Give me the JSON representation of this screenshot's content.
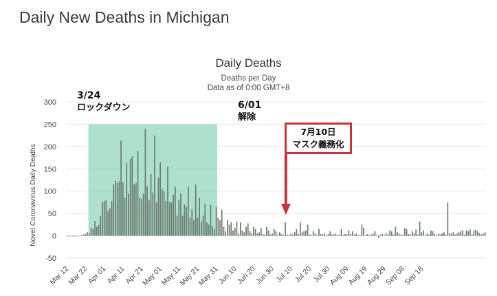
{
  "page": {
    "title": "Daily New Deaths in Michigan"
  },
  "annotations": {
    "lockdown_date": "3/24",
    "lockdown_label": "ロックダウン",
    "reopen_date": "6/01",
    "reopen_label": "解除",
    "mask_date": "7月10日",
    "mask_label": "マスク義務化"
  },
  "colors": {
    "bar": "#6b7b6e",
    "shade": "#9fdcc6",
    "arrow": "#c8333b",
    "grid": "#e6e6e6"
  },
  "chart_data": {
    "type": "bar",
    "title": "Daily Deaths",
    "subtitle": "Deaths per Day",
    "subtitle2": "Data as of 0:00 GMT+8",
    "ylabel": "Novel Coronavirus Daily Deaths",
    "xlabel": "",
    "ylim": [
      -50,
      300
    ],
    "yticks": [
      -50,
      0,
      50,
      100,
      150,
      200,
      250,
      300
    ],
    "x_start": "Mar 12",
    "xticks": [
      "Mar 12",
      "Mar 22",
      "Apr 01",
      "Apr 11",
      "Apr 21",
      "May 01",
      "May 11",
      "May 21",
      "May 31",
      "Jun 10",
      "Jun 20",
      "Jun 30",
      "Jul 10",
      "Jul 20",
      "Jul 30",
      "Aug 09",
      "Aug 19",
      "Aug 29",
      "Sep 08",
      "Sep 18"
    ],
    "shaded_range": {
      "from": "Mar 24",
      "to": "Jun 01",
      "ymax": 250
    },
    "mask_marker": "Jul 10",
    "values": [
      0,
      0,
      0,
      0,
      0,
      0,
      0,
      1,
      2,
      3,
      4,
      8,
      5,
      18,
      15,
      33,
      20,
      24,
      45,
      75,
      78,
      80,
      55,
      62,
      78,
      115,
      123,
      118,
      122,
      213,
      120,
      85,
      163,
      95,
      172,
      178,
      115,
      118,
      190,
      85,
      83,
      95,
      240,
      110,
      80,
      138,
      97,
      225,
      75,
      130,
      165,
      105,
      100,
      78,
      155,
      75,
      75,
      92,
      110,
      45,
      80,
      95,
      45,
      70,
      65,
      110,
      40,
      60,
      35,
      115,
      40,
      85,
      32,
      45,
      72,
      30,
      25,
      70,
      22,
      15,
      65,
      40,
      35,
      58,
      20,
      10,
      35,
      25,
      30,
      12,
      18,
      32,
      5,
      30,
      12,
      8,
      20,
      28,
      10,
      6,
      20,
      15,
      5,
      8,
      18,
      4,
      3,
      20,
      12,
      3,
      5,
      15,
      10,
      3,
      8,
      4,
      2,
      30,
      3,
      2,
      5,
      3,
      8,
      15,
      4,
      30,
      8,
      10,
      12,
      25,
      3,
      2,
      10,
      5,
      2,
      15,
      4,
      3,
      6,
      2,
      4,
      10,
      3,
      3,
      5,
      2,
      3,
      15,
      2,
      4,
      3,
      12,
      4,
      10,
      3,
      5,
      2,
      2,
      25,
      18,
      2,
      4,
      2,
      3,
      5,
      10,
      2,
      -5,
      3,
      4,
      2,
      6,
      3,
      12,
      10,
      3,
      20,
      8,
      5,
      3,
      2,
      18,
      15,
      4,
      3,
      10,
      5,
      14,
      3,
      32,
      8,
      12,
      2,
      5,
      3,
      12,
      10,
      4,
      2,
      5,
      3,
      6,
      8,
      3,
      75,
      6,
      5,
      8,
      3,
      5,
      8,
      10,
      12,
      3,
      12,
      10,
      14,
      3,
      12,
      14,
      10,
      6,
      3,
      5,
      8
    ]
  }
}
